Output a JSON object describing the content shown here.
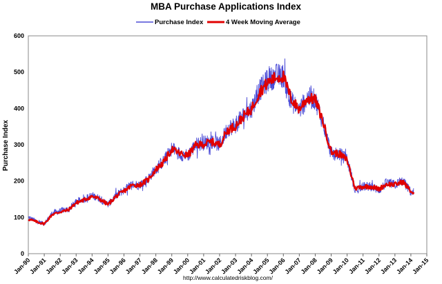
{
  "chart_data": {
    "type": "line",
    "title": "MBA Purchase Applications Index",
    "ylabel": "Purchase Index",
    "xlabel": "",
    "ylim": [
      0,
      600
    ],
    "yticks": [
      "0",
      "100",
      "200",
      "300",
      "400",
      "500",
      "600"
    ],
    "xlim": [
      "1990-01",
      "2015-01"
    ],
    "xticks": [
      "Jan-90",
      "Jan-91",
      "Jan-92",
      "Jan-93",
      "Jan-94",
      "Jan-95",
      "Jan-96",
      "Jan-97",
      "Jan-98",
      "Jan-99",
      "Jan-00",
      "Jan-01",
      "Jan-02",
      "Jan-03",
      "Jan-04",
      "Jan-05",
      "Jan-06",
      "Jan-07",
      "Jan-08",
      "Jan-09",
      "Jan-10",
      "Jan-11",
      "Jan-12",
      "Jan-13",
      "Jan-14",
      "Jan-15"
    ],
    "grid": true,
    "legend_position": "top-center",
    "source": "http://www.calculatedriskblog.com/",
    "series": [
      {
        "name": "Purchase Index",
        "color": "#4b4bd6",
        "style": "thin-weekly",
        "x": [
          "1990-01",
          "1990-07",
          "1991-01",
          "1991-07",
          "1992-01",
          "1992-07",
          "1993-01",
          "1993-07",
          "1994-01",
          "1994-07",
          "1995-01",
          "1995-07",
          "1996-01",
          "1996-07",
          "1997-01",
          "1997-07",
          "1998-01",
          "1998-07",
          "1999-01",
          "1999-07",
          "2000-01",
          "2000-07",
          "2001-01",
          "2001-07",
          "2002-01",
          "2002-07",
          "2003-01",
          "2003-07",
          "2004-01",
          "2004-07",
          "2005-01",
          "2005-07",
          "2006-01",
          "2006-07",
          "2007-01",
          "2007-07",
          "2008-01",
          "2008-07",
          "2009-01",
          "2009-07",
          "2010-01",
          "2010-07",
          "2011-01",
          "2011-07",
          "2012-01",
          "2012-07",
          "2013-01",
          "2013-07",
          "2014-01",
          "2014-03"
        ],
        "values": [
          100,
          90,
          82,
          112,
          118,
          122,
          142,
          150,
          160,
          152,
          135,
          160,
          175,
          190,
          190,
          205,
          235,
          255,
          290,
          275,
          270,
          300,
          305,
          310,
          300,
          345,
          355,
          380,
          400,
          450,
          475,
          490,
          490,
          420,
          395,
          430,
          425,
          360,
          275,
          275,
          260,
          175,
          185,
          185,
          175,
          195,
          190,
          200,
          170,
          165
        ]
      },
      {
        "name": "4 Week Moving Average",
        "color": "#e00000",
        "style": "thick-smoothed",
        "x": [
          "1990-01",
          "1990-07",
          "1991-01",
          "1991-07",
          "1992-01",
          "1992-07",
          "1993-01",
          "1993-07",
          "1994-01",
          "1994-07",
          "1995-01",
          "1995-07",
          "1996-01",
          "1996-07",
          "1997-01",
          "1997-07",
          "1998-01",
          "1998-07",
          "1999-01",
          "1999-07",
          "2000-01",
          "2000-07",
          "2001-01",
          "2001-07",
          "2002-01",
          "2002-07",
          "2003-01",
          "2003-07",
          "2004-01",
          "2004-07",
          "2005-01",
          "2005-07",
          "2006-01",
          "2006-07",
          "2007-01",
          "2007-07",
          "2008-01",
          "2008-07",
          "2009-01",
          "2009-07",
          "2010-01",
          "2010-07",
          "2011-01",
          "2011-07",
          "2012-01",
          "2012-07",
          "2013-01",
          "2013-07",
          "2014-01",
          "2014-03"
        ],
        "values": [
          95,
          88,
          82,
          108,
          115,
          120,
          140,
          148,
          158,
          150,
          135,
          158,
          172,
          188,
          190,
          203,
          232,
          252,
          288,
          276,
          270,
          298,
          302,
          308,
          300,
          340,
          352,
          378,
          398,
          445,
          470,
          485,
          488,
          425,
          398,
          428,
          425,
          362,
          280,
          275,
          258,
          180,
          185,
          185,
          178,
          192,
          190,
          198,
          172,
          165
        ]
      }
    ]
  }
}
